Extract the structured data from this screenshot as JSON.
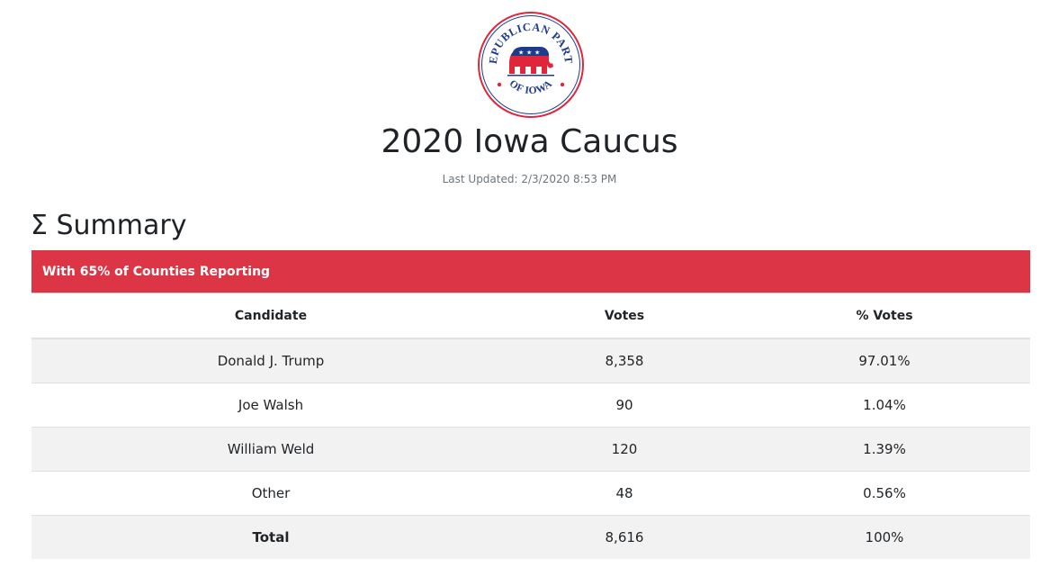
{
  "header": {
    "logo": {
      "icon": "republican-party-of-iowa-seal",
      "text_top": "REPUBLICAN PARTY",
      "text_bottom": "OF IOWA"
    },
    "title": "2020 Iowa Caucus",
    "last_updated": "Last Updated: 2/3/2020 8:53 PM"
  },
  "summary": {
    "heading": "Σ Summary",
    "banner": "With 65% of Counties Reporting",
    "columns": [
      "Candidate",
      "Votes",
      "% Votes"
    ],
    "rows": [
      {
        "candidate": "Donald J. Trump",
        "votes": "8,358",
        "pct": "97.01%"
      },
      {
        "candidate": "Joe Walsh",
        "votes": "90",
        "pct": "1.04%"
      },
      {
        "candidate": "William Weld",
        "votes": "120",
        "pct": "1.39%"
      },
      {
        "candidate": "Other",
        "votes": "48",
        "pct": "0.56%"
      }
    ],
    "total": {
      "label": "Total",
      "votes": "8,616",
      "pct": "100%"
    }
  },
  "colors": {
    "banner": "#dc3545",
    "stripe": "#f2f2f2",
    "seal_red": "#e0263a",
    "seal_blue": "#1d3c8c"
  }
}
